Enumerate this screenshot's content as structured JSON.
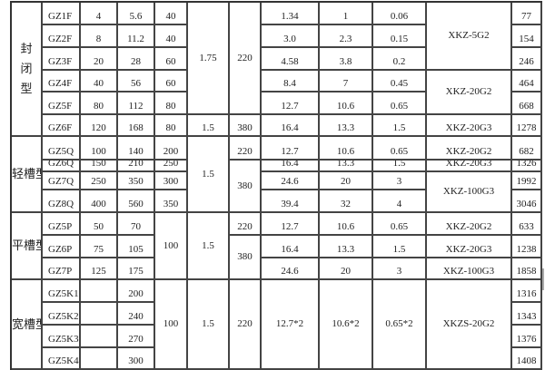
{
  "categories": {
    "closed": "封\n闭\n型",
    "light": "轻槽型",
    "flat": "平槽型",
    "wide": "宽槽型"
  },
  "rows": [
    {
      "model": "GZ1F",
      "a": "4",
      "b": "5.6",
      "c": "40",
      "p1": "1.34",
      "p2": "1",
      "p3": "0.06",
      "w": "77"
    },
    {
      "model": "GZ2F",
      "a": "8",
      "b": "11.2",
      "c": "40",
      "p1": "3.0",
      "p2": "2.3",
      "p3": "0.15",
      "w": "154"
    },
    {
      "model": "GZ3F",
      "a": "20",
      "b": "28",
      "c": "60",
      "p1": "4.58",
      "p2": "3.8",
      "p3": "0.2",
      "w": "246"
    },
    {
      "model": "GZ4F",
      "a": "40",
      "b": "56",
      "c": "60",
      "p1": "8.4",
      "p2": "7",
      "p3": "0.45",
      "w": "464"
    },
    {
      "model": "GZ5F",
      "a": "80",
      "b": "112",
      "c": "80",
      "p1": "12.7",
      "p2": "10.6",
      "p3": "0.65",
      "w": "668"
    },
    {
      "model": "GZ6F",
      "a": "120",
      "b": "168",
      "c": "80",
      "amp": "1.5",
      "v": "380",
      "p1": "16.4",
      "p2": "13.3",
      "p3": "1.5",
      "ctrl": "XKZ-20G3",
      "w": "1278"
    },
    {
      "model": "GZ5Q",
      "a": "100",
      "b": "140",
      "c": "200",
      "v": "220",
      "p1": "12.7",
      "p2": "10.6",
      "p3": "0.65",
      "ctrl": "XKZ-20G2",
      "w": "682"
    },
    {
      "model": "GZ6Q",
      "a": "150",
      "b": "210",
      "c": "250",
      "p1": "16.4",
      "p2": "13.3",
      "p3": "1.5",
      "ctrl": "XKZ-20G3",
      "w": "1326"
    },
    {
      "model": "GZ7Q",
      "a": "250",
      "b": "350",
      "c": "300",
      "p1": "24.6",
      "p2": "20",
      "p3": "3",
      "w": "1992"
    },
    {
      "model": "GZ8Q",
      "a": "400",
      "b": "560",
      "c": "350",
      "p1": "39.4",
      "p2": "32",
      "p3": "4",
      "w": "3046"
    },
    {
      "model": "GZ5P",
      "a": "50",
      "b": "70",
      "v": "220",
      "p1": "12.7",
      "p2": "10.6",
      "p3": "0.65",
      "ctrl": "XKZ-20G2",
      "w": "633"
    },
    {
      "model": "GZ6P",
      "a": "75",
      "b": "105",
      "p1": "16.4",
      "p2": "13.3",
      "p3": "1.5",
      "ctrl": "XKZ-20G3",
      "w": "1238"
    },
    {
      "model": "GZ7P",
      "a": "125",
      "b": "175",
      "p1": "24.6",
      "p2": "20",
      "p3": "3",
      "ctrl": "XKZ-100G3",
      "w": "1858"
    },
    {
      "model": "GZ5K1",
      "a": "",
      "b": "200",
      "w": "1316"
    },
    {
      "model": "GZ5K2",
      "a": "",
      "b": "240",
      "w": "1343"
    },
    {
      "model": "GZ5K3",
      "a": "",
      "b": "270",
      "w": "1376"
    },
    {
      "model": "GZ5K4",
      "a": "",
      "b": "300",
      "w": "1408"
    }
  ],
  "merged": {
    "closed_amp": "1.75",
    "closed_v": "220",
    "ctrl_5g2": "XKZ-5G2",
    "ctrl_20g2": "XKZ-20G2",
    "light_amp": "1.5",
    "light_v": "380",
    "light_ctrl_100g3": "XKZ-100G3",
    "flat_c": "100",
    "flat_amp": "1.5",
    "flat_v": "380",
    "wide_c": "100",
    "wide_amp": "1.5",
    "wide_v": "220",
    "wide_p1": "12.7*2",
    "wide_p2": "10.6*2",
    "wide_p3": "0.65*2",
    "wide_ctrl": "XKZS-20G2"
  }
}
